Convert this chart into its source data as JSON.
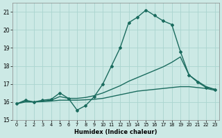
{
  "title": "",
  "xlabel": "Humidex (Indice chaleur)",
  "background_color": "#cce9e5",
  "grid_color": "#aad4cf",
  "line_color": "#1a6b5e",
  "xlim": [
    -0.5,
    23.5
  ],
  "ylim": [
    15.0,
    21.5
  ],
  "yticks": [
    15,
    16,
    17,
    18,
    19,
    20,
    21
  ],
  "xticks": [
    0,
    1,
    2,
    3,
    4,
    5,
    6,
    7,
    8,
    9,
    10,
    11,
    12,
    13,
    14,
    15,
    16,
    17,
    18,
    19,
    20,
    21,
    22,
    23
  ],
  "series": [
    {
      "x": [
        0,
        1,
        2,
        3,
        4,
        5,
        6,
        7,
        8,
        9,
        10,
        11,
        12,
        13,
        14,
        15,
        16,
        17,
        18,
        19,
        20,
        21,
        22,
        23
      ],
      "y": [
        15.9,
        16.1,
        16.0,
        16.1,
        16.15,
        16.5,
        16.2,
        15.55,
        15.8,
        16.3,
        17.0,
        18.0,
        19.0,
        20.4,
        20.7,
        21.1,
        20.8,
        20.5,
        20.3,
        18.8,
        17.5,
        17.1,
        16.8,
        16.7
      ],
      "has_marker": true,
      "linewidth": 1.0
    },
    {
      "x": [
        0,
        1,
        2,
        3,
        4,
        5,
        6,
        7,
        8,
        9,
        10,
        11,
        12,
        13,
        14,
        15,
        16,
        17,
        18,
        19,
        20,
        21,
        22,
        23
      ],
      "y": [
        15.9,
        16.05,
        16.0,
        16.05,
        16.1,
        16.3,
        16.2,
        16.2,
        16.25,
        16.35,
        16.5,
        16.7,
        16.9,
        17.15,
        17.35,
        17.55,
        17.75,
        17.95,
        18.2,
        18.5,
        17.5,
        17.15,
        16.85,
        16.7
      ],
      "has_marker": false,
      "linewidth": 1.0
    },
    {
      "x": [
        0,
        1,
        2,
        3,
        4,
        5,
        6,
        7,
        8,
        9,
        10,
        11,
        12,
        13,
        14,
        15,
        16,
        17,
        18,
        19,
        20,
        21,
        22,
        23
      ],
      "y": [
        15.9,
        16.0,
        16.0,
        16.02,
        16.05,
        16.1,
        16.1,
        16.1,
        16.12,
        16.15,
        16.2,
        16.3,
        16.4,
        16.5,
        16.6,
        16.65,
        16.7,
        16.75,
        16.8,
        16.85,
        16.85,
        16.8,
        16.75,
        16.65
      ],
      "has_marker": false,
      "linewidth": 1.0
    }
  ]
}
